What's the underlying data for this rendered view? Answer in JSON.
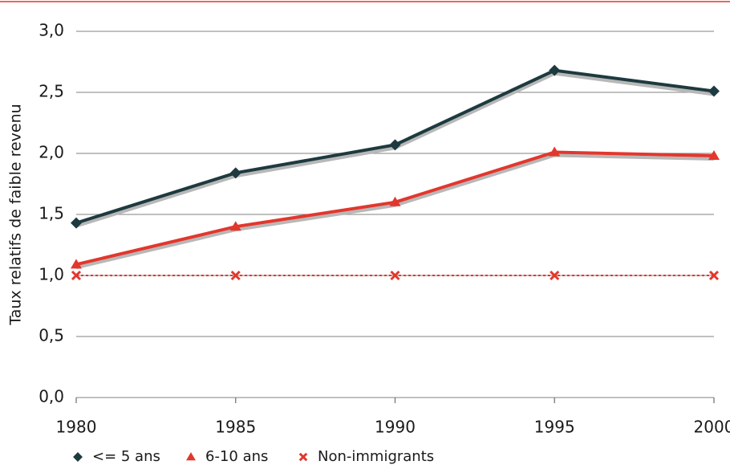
{
  "chart_data": {
    "type": "line",
    "y_label": "Taux relatifs de faible revenu",
    "x": [
      1980,
      1985,
      1990,
      1995,
      2000
    ],
    "xlim": [
      1980,
      2000
    ],
    "xticks": [
      1980,
      1985,
      1990,
      1995,
      2000
    ],
    "ylim": [
      0,
      3
    ],
    "yticks": [
      {
        "value": 0,
        "label": "0,0"
      },
      {
        "value": 0.5,
        "label": "0,5"
      },
      {
        "value": 1,
        "label": "1,0"
      },
      {
        "value": 1.5,
        "label": "1,5"
      },
      {
        "value": 2,
        "label": "2,0"
      },
      {
        "value": 2.5,
        "label": "2,5"
      },
      {
        "value": 3,
        "label": "3,0"
      }
    ],
    "grid": true,
    "series": [
      {
        "name": "<= 5 ans",
        "color": "#1d3a3f",
        "marker": "diamond",
        "line_style": "solid",
        "values": [
          1.43,
          1.84,
          2.07,
          2.68,
          2.51
        ]
      },
      {
        "name": "6-10 ans",
        "color": "#e2372d",
        "marker": "triangle",
        "line_style": "solid",
        "values": [
          1.09,
          1.4,
          1.6,
          2.01,
          1.98
        ]
      },
      {
        "name": "Non-immigrants",
        "color": "#e2372d",
        "marker": "cross",
        "line_style": "dotted",
        "values": [
          1.0,
          1.0,
          1.0,
          1.0,
          1.0
        ]
      }
    ]
  }
}
